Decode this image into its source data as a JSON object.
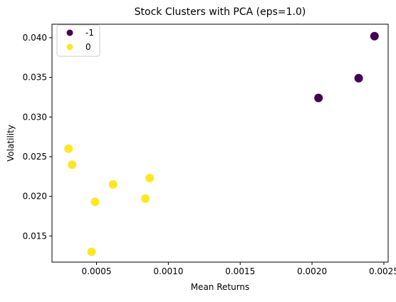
{
  "chart_data": {
    "type": "scatter",
    "title": "Stock Clusters with PCA (eps=1.0)",
    "xlabel": "Mean Returns",
    "ylabel": "Volatility",
    "xlim": [
      0.00019,
      0.00253
    ],
    "ylim": [
      0.0117,
      0.0417
    ],
    "xticks": [
      0.0005,
      0.001,
      0.0015,
      0.002,
      0.0025
    ],
    "xtick_labels": [
      "0.0005",
      "0.0010",
      "0.0015",
      "0.0020",
      "0.0025"
    ],
    "yticks": [
      0.015,
      0.02,
      0.025,
      0.03,
      0.035,
      0.04
    ],
    "ytick_labels": [
      "0.015",
      "0.020",
      "0.025",
      "0.030",
      "0.035",
      "0.040"
    ],
    "grid": false,
    "legend_position": "top-left",
    "series": [
      {
        "name": "-1",
        "color": "#440154",
        "points": [
          {
            "x": 0.002045,
            "y": 0.0324
          },
          {
            "x": 0.002325,
            "y": 0.0349
          },
          {
            "x": 0.002435,
            "y": 0.0402
          }
        ]
      },
      {
        "name": "0",
        "color": "#fde725",
        "points": [
          {
            "x": 0.000305,
            "y": 0.026
          },
          {
            "x": 0.00033,
            "y": 0.024
          },
          {
            "x": 0.000465,
            "y": 0.013
          },
          {
            "x": 0.00049,
            "y": 0.0193
          },
          {
            "x": 0.000615,
            "y": 0.0215
          },
          {
            "x": 0.00084,
            "y": 0.0197
          },
          {
            "x": 0.00087,
            "y": 0.0223
          }
        ]
      }
    ]
  }
}
